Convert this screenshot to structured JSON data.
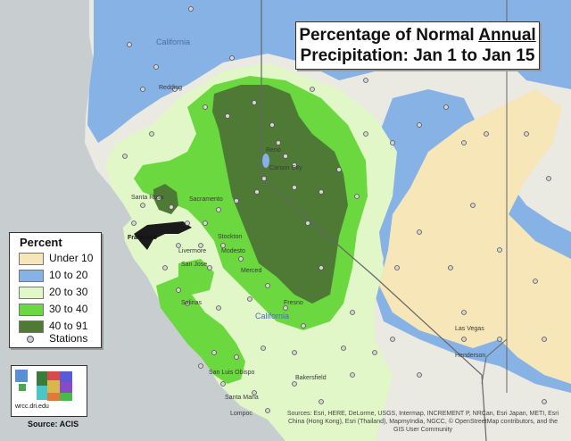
{
  "title": {
    "line1_before": "Percentage of Normal ",
    "line1_underlined": "Annual",
    "line2": "Precipitation: Jan 1 to Jan 15"
  },
  "legend": {
    "title": "Percent",
    "items": [
      {
        "label": "Under 10",
        "color": "#f7e6b8"
      },
      {
        "label": "10 to 20",
        "color": "#86b2e6"
      },
      {
        "label": "20 to 30",
        "color": "#e1f7c8"
      },
      {
        "label": "30 to 40",
        "color": "#6ad83e"
      },
      {
        "label": "40 to 91",
        "color": "#4f7a36"
      }
    ],
    "stations_label": "Stations"
  },
  "logo": {
    "url": "wrcc.dri.edu"
  },
  "source": "Source:  ACIS",
  "credits": "Sources: Esri, HERE, DeLorme, USGS, Intermap, INCREMENT P, NRCan, Esri Japan, METI, Esri China (Hong Kong), Esri (Thailand), MapmyIndia, NGCC, © OpenStreetMap contributors, and the GIS User Community",
  "places": [
    {
      "name": "California",
      "color": "#4a6fa5"
    },
    {
      "name": "Redding"
    },
    {
      "name": "Santa Rosa"
    },
    {
      "name": "Sacramento"
    },
    {
      "name": "Stockton"
    },
    {
      "name": "Livermore"
    },
    {
      "name": "San Jose"
    },
    {
      "name": "Salinas"
    },
    {
      "name": "Modesto"
    },
    {
      "name": "Merced"
    },
    {
      "name": "Fresno"
    },
    {
      "name": "California"
    },
    {
      "name": "Carson City"
    },
    {
      "name": "Reno"
    },
    {
      "name": "Bakersfield"
    },
    {
      "name": "San Luis Obispo"
    },
    {
      "name": "Santa Maria"
    },
    {
      "name": "Lompoc"
    },
    {
      "name": "Las Vegas"
    },
    {
      "name": "Henderson"
    },
    {
      "name": "Francisco"
    }
  ],
  "colors": {
    "ocean": "#c8cdd0",
    "land": "#e8e8e0",
    "state_line": "#666666"
  }
}
